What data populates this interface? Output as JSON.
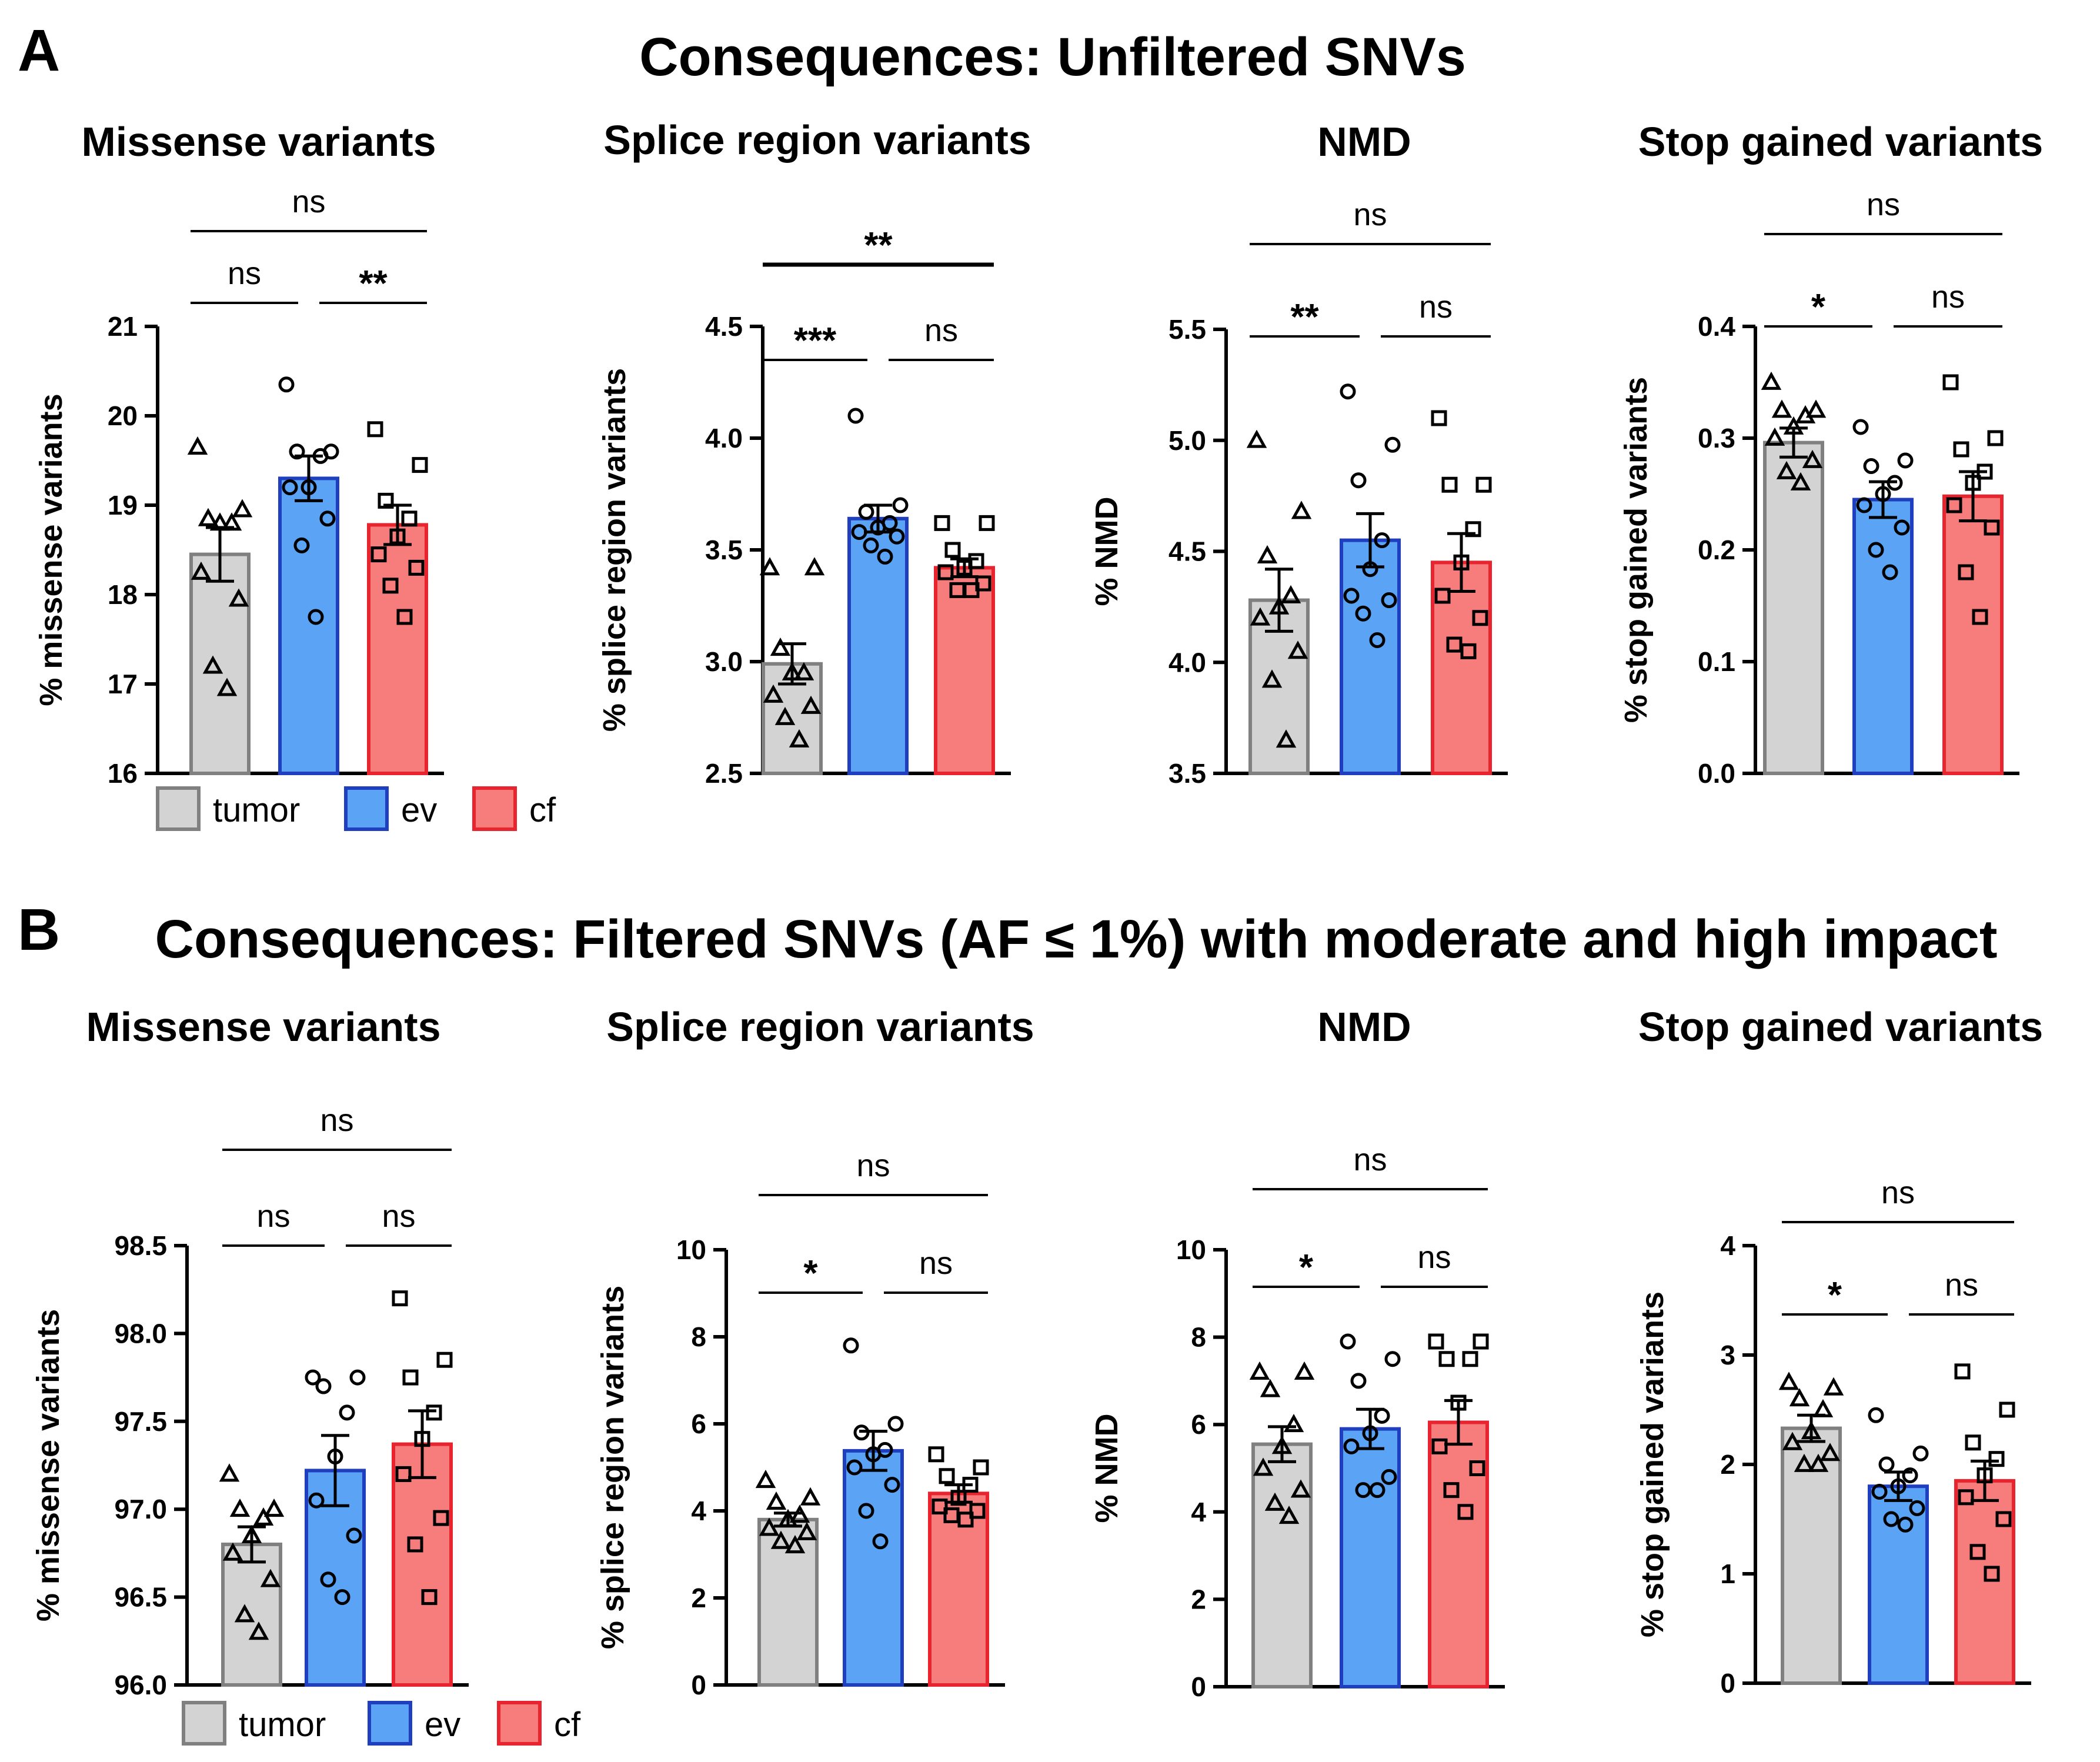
{
  "panels": [
    {
      "letter": "A",
      "title": "Consequences: Unfiltered SNVs"
    },
    {
      "letter": "B",
      "title": "Consequences: Filtered SNVs (AF ≤ 1%) with moderate and high impact"
    }
  ],
  "legend": [
    {
      "label": "tumor",
      "fill": "#d3d3d3",
      "stroke": "#808080"
    },
    {
      "label": "ev",
      "fill": "#5aa3f5",
      "stroke": "#1f3fbf"
    },
    {
      "label": "cf",
      "fill": "#f77c7c",
      "stroke": "#e8242e"
    }
  ],
  "colors": {
    "tumor_fill": "#d3d3d3",
    "tumor_stroke": "#808080",
    "ev_fill": "#5aa3f5",
    "ev_stroke": "#1f3fbf",
    "cf_fill": "#f77c7c",
    "cf_stroke": "#e8242e"
  },
  "chart_data": [
    {
      "type": "bar",
      "panel": "A",
      "title": "Missense variants",
      "ylabel": "% missense variants",
      "categories": [
        "tumor",
        "ev",
        "cf"
      ],
      "ylim": [
        16,
        21
      ],
      "yticks": [
        "16",
        "17",
        "18",
        "19",
        "20",
        "21"
      ],
      "values": [
        18.45,
        19.3,
        18.78
      ],
      "sem": [
        0.3,
        0.25,
        0.22
      ],
      "points": [
        [
          19.65,
          18.95,
          18.85,
          18.8,
          18.8,
          18.25,
          17.95,
          17.2,
          16.95
        ],
        [
          20.35,
          19.6,
          19.6,
          19.55,
          19.2,
          19.2,
          18.85,
          18.55,
          17.75
        ],
        [
          19.85,
          19.45,
          19.05,
          18.85,
          18.65,
          18.45,
          18.3,
          18.1,
          17.75
        ]
      ],
      "markers": [
        "triangle",
        "circle",
        "square"
      ],
      "significance": [
        {
          "from": 0,
          "to": 2,
          "label": "ns",
          "level": 0
        },
        {
          "from": 0,
          "to": 1,
          "label": "ns",
          "level": 1
        },
        {
          "from": 1,
          "to": 2,
          "label": "**",
          "level": 1
        }
      ]
    },
    {
      "type": "bar",
      "panel": "A",
      "title": "Splice region variants",
      "ylabel": "% splice region variants",
      "categories": [
        "tumor",
        "ev",
        "cf"
      ],
      "ylim": [
        2.5,
        4.5
      ],
      "yticks": [
        "2.5",
        "3.0",
        "3.5",
        "4.0",
        "4.5"
      ],
      "values": [
        2.99,
        3.64,
        3.42
      ],
      "sem": [
        0.09,
        0.06,
        0.04
      ],
      "points": [
        [
          3.42,
          3.42,
          3.06,
          2.95,
          2.95,
          2.85,
          2.8,
          2.75,
          2.65
        ],
        [
          4.1,
          3.7,
          3.67,
          3.62,
          3.6,
          3.58,
          3.56,
          3.52,
          3.47
        ],
        [
          3.62,
          3.62,
          3.5,
          3.45,
          3.42,
          3.4,
          3.35,
          3.32,
          3.32
        ]
      ],
      "markers": [
        "triangle",
        "circle",
        "square"
      ],
      "significance": [
        {
          "from": 0,
          "to": 2,
          "label": "**",
          "level": 0
        },
        {
          "from": 0,
          "to": 1,
          "label": "***",
          "level": 1
        },
        {
          "from": 1,
          "to": 2,
          "label": "ns",
          "level": 1
        }
      ]
    },
    {
      "type": "bar",
      "panel": "A",
      "title": "NMD",
      "ylabel": "% NMD",
      "categories": [
        "tumor",
        "ev",
        "cf"
      ],
      "ylim": [
        3.5,
        5.5
      ],
      "yticks": [
        "3.5",
        "4.0",
        "4.5",
        "5.0",
        "5.5"
      ],
      "values": [
        4.28,
        4.55,
        4.45
      ],
      "sem": [
        0.14,
        0.12,
        0.13
      ],
      "points": [
        [
          5.0,
          4.68,
          4.48,
          4.3,
          4.25,
          4.2,
          4.05,
          3.92,
          3.65
        ],
        [
          5.22,
          4.98,
          4.82,
          4.55,
          4.42,
          4.3,
          4.28,
          4.22,
          4.1
        ],
        [
          5.1,
          4.8,
          4.8,
          4.6,
          4.45,
          4.3,
          4.2,
          4.08,
          4.05
        ]
      ],
      "markers": [
        "triangle",
        "circle",
        "square"
      ],
      "significance": [
        {
          "from": 0,
          "to": 2,
          "label": "ns",
          "level": 0
        },
        {
          "from": 0,
          "to": 1,
          "label": "**",
          "level": 1
        },
        {
          "from": 1,
          "to": 2,
          "label": "ns",
          "level": 1
        }
      ]
    },
    {
      "type": "bar",
      "panel": "A",
      "title": "Stop gained variants",
      "ylabel": "% stop gained variants",
      "categories": [
        "tumor",
        "ev",
        "cf"
      ],
      "ylim": [
        0.0,
        0.4
      ],
      "yticks": [
        "0.0",
        "0.1",
        "0.2",
        "0.3",
        "0.4"
      ],
      "values": [
        0.296,
        0.245,
        0.248
      ],
      "sem": [
        0.013,
        0.016,
        0.022
      ],
      "points": [
        [
          0.35,
          0.325,
          0.325,
          0.32,
          0.31,
          0.3,
          0.28,
          0.27,
          0.26
        ],
        [
          0.31,
          0.28,
          0.275,
          0.26,
          0.25,
          0.24,
          0.22,
          0.2,
          0.18
        ],
        [
          0.35,
          0.3,
          0.29,
          0.27,
          0.26,
          0.24,
          0.22,
          0.18,
          0.14
        ]
      ],
      "markers": [
        "triangle",
        "circle",
        "square"
      ],
      "significance": [
        {
          "from": 0,
          "to": 2,
          "label": "ns",
          "level": 0
        },
        {
          "from": 0,
          "to": 1,
          "label": "*",
          "level": 1
        },
        {
          "from": 1,
          "to": 2,
          "label": "ns",
          "level": 1
        }
      ]
    },
    {
      "type": "bar",
      "panel": "B",
      "title": "Missense variants",
      "ylabel": "% missense variants",
      "categories": [
        "tumor",
        "ev",
        "cf"
      ],
      "ylim": [
        96.0,
        98.5
      ],
      "yticks": [
        "96.0",
        "96.5",
        "97.0",
        "97.5",
        "98.0",
        "98.5"
      ],
      "values": [
        96.8,
        97.22,
        97.37
      ],
      "sem": [
        0.1,
        0.2,
        0.19
      ],
      "points": [
        [
          97.2,
          97.0,
          97.0,
          96.95,
          96.85,
          96.75,
          96.6,
          96.4,
          96.3
        ],
        [
          97.75,
          97.75,
          97.7,
          97.55,
          97.3,
          97.05,
          96.85,
          96.6,
          96.5
        ],
        [
          98.2,
          97.85,
          97.75,
          97.55,
          97.4,
          97.2,
          96.95,
          96.8,
          96.5
        ]
      ],
      "markers": [
        "triangle",
        "circle",
        "square"
      ],
      "significance": [
        {
          "from": 0,
          "to": 2,
          "label": "ns",
          "level": 0
        },
        {
          "from": 0,
          "to": 1,
          "label": "ns",
          "level": 1
        },
        {
          "from": 1,
          "to": 2,
          "label": "ns",
          "level": 1
        }
      ]
    },
    {
      "type": "bar",
      "panel": "B",
      "title": "Splice region variants",
      "ylabel": "% splice region variants",
      "categories": [
        "tumor",
        "ev",
        "cf"
      ],
      "ylim": [
        0,
        10
      ],
      "yticks": [
        "0",
        "2",
        "4",
        "6",
        "8",
        "10"
      ],
      "values": [
        3.8,
        5.38,
        4.4
      ],
      "sem": [
        0.15,
        0.45,
        0.2
      ],
      "points": [
        [
          4.7,
          4.3,
          4.2,
          3.9,
          3.8,
          3.6,
          3.5,
          3.3,
          3.2
        ],
        [
          7.8,
          6.0,
          5.8,
          5.4,
          5.3,
          5.0,
          4.6,
          4.0,
          3.3
        ],
        [
          5.3,
          5.0,
          4.8,
          4.6,
          4.3,
          4.1,
          4.0,
          3.9,
          3.8
        ]
      ],
      "markers": [
        "triangle",
        "circle",
        "square"
      ],
      "significance": [
        {
          "from": 0,
          "to": 2,
          "label": "ns",
          "level": 0
        },
        {
          "from": 0,
          "to": 1,
          "label": "*",
          "level": 1
        },
        {
          "from": 1,
          "to": 2,
          "label": "ns",
          "level": 1
        }
      ]
    },
    {
      "type": "bar",
      "panel": "B",
      "title": "NMD",
      "ylabel": "% NMD",
      "categories": [
        "tumor",
        "ev",
        "cf"
      ],
      "ylim": [
        0,
        10
      ],
      "yticks": [
        "0",
        "2",
        "4",
        "6",
        "8",
        "10"
      ],
      "values": [
        5.55,
        5.9,
        6.05
      ],
      "sem": [
        0.4,
        0.45,
        0.5
      ],
      "points": [
        [
          7.2,
          7.2,
          6.8,
          6.0,
          5.5,
          5.0,
          4.5,
          4.2,
          3.9
        ],
        [
          7.9,
          7.5,
          7.0,
          6.2,
          5.8,
          5.5,
          4.8,
          4.5,
          4.5
        ],
        [
          7.9,
          7.9,
          7.5,
          7.5,
          6.5,
          5.5,
          5.0,
          4.5,
          4.0
        ]
      ],
      "markers": [
        "triangle",
        "circle",
        "square"
      ],
      "significance": [
        {
          "from": 0,
          "to": 2,
          "label": "ns",
          "level": 0
        },
        {
          "from": 0,
          "to": 1,
          "label": "*",
          "level": 1
        },
        {
          "from": 1,
          "to": 2,
          "label": "ns",
          "level": 1
        }
      ]
    },
    {
      "type": "bar",
      "panel": "B",
      "title": "Stop gained variants",
      "ylabel": "% stop gained variants",
      "categories": [
        "tumor",
        "ev",
        "cf"
      ],
      "ylim": [
        0,
        4
      ],
      "yticks": [
        "0",
        "1",
        "2",
        "3",
        "4"
      ],
      "values": [
        2.33,
        1.8,
        1.85
      ],
      "sem": [
        0.12,
        0.13,
        0.18
      ],
      "points": [
        [
          2.75,
          2.7,
          2.6,
          2.5,
          2.3,
          2.2,
          2.1,
          2.0,
          2.0
        ],
        [
          2.45,
          2.1,
          2.0,
          1.9,
          1.8,
          1.75,
          1.6,
          1.5,
          1.45
        ],
        [
          2.85,
          2.5,
          2.2,
          2.05,
          1.9,
          1.7,
          1.5,
          1.2,
          1.0
        ]
      ],
      "markers": [
        "triangle",
        "circle",
        "square"
      ],
      "significance": [
        {
          "from": 0,
          "to": 2,
          "label": "ns",
          "level": 0
        },
        {
          "from": 0,
          "to": 1,
          "label": "*",
          "level": 1
        },
        {
          "from": 1,
          "to": 2,
          "label": "ns",
          "level": 1
        }
      ]
    }
  ]
}
